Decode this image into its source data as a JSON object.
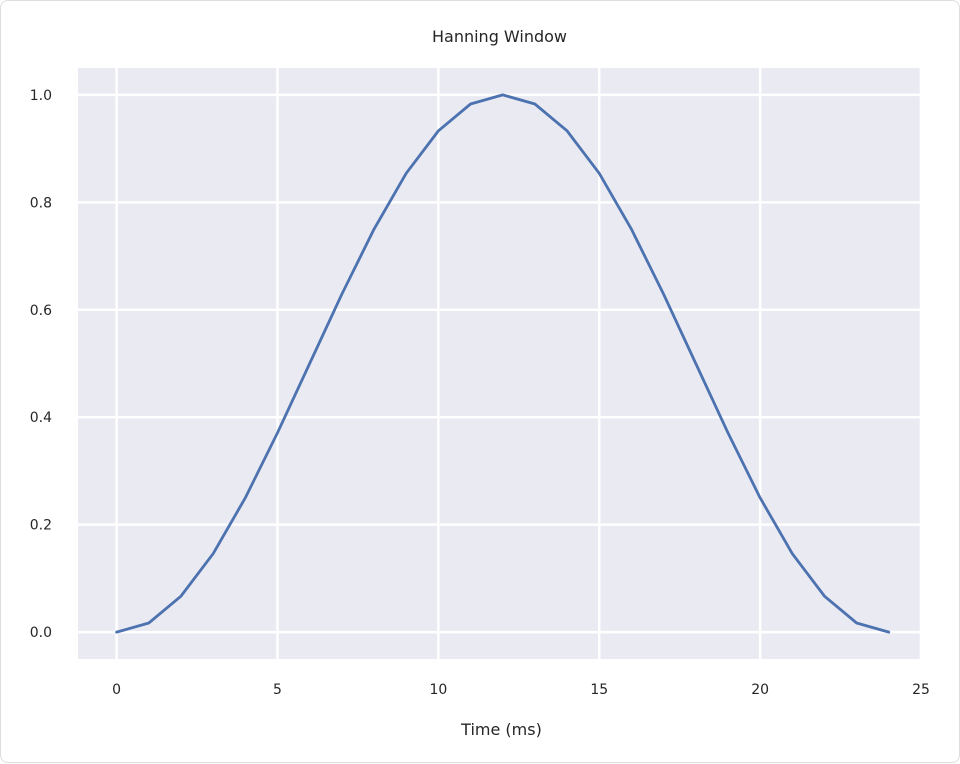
{
  "chart_data": {
    "type": "line",
    "title": "Hanning Window",
    "xlabel": "Time (ms)",
    "ylabel": "",
    "xlim": [
      -1.2,
      25
    ],
    "ylim": [
      -0.05,
      1.05
    ],
    "x_ticks": [
      0,
      5,
      10,
      15,
      20,
      25
    ],
    "x_tick_labels": [
      "0",
      "5",
      "10",
      "15",
      "20",
      "25"
    ],
    "y_ticks": [
      0.0,
      0.2,
      0.4,
      0.6,
      0.8,
      1.0
    ],
    "y_tick_labels": [
      "0.0",
      "0.2",
      "0.4",
      "0.6",
      "0.8",
      "1.0"
    ],
    "grid": true,
    "background_color": "#eaeaf2",
    "grid_color": "#ffffff",
    "series": [
      {
        "color": "#4c72b0",
        "x": [
          0,
          1,
          2,
          3,
          4,
          5,
          6,
          7,
          8,
          9,
          10,
          11,
          12,
          13,
          14,
          15,
          16,
          17,
          18,
          19,
          20,
          21,
          22,
          23,
          24
        ],
        "y": [
          0.0,
          0.017,
          0.067,
          0.146,
          0.25,
          0.371,
          0.5,
          0.629,
          0.75,
          0.854,
          0.933,
          0.983,
          1.0,
          0.983,
          0.933,
          0.854,
          0.75,
          0.629,
          0.5,
          0.371,
          0.25,
          0.146,
          0.067,
          0.017,
          0.0
        ]
      }
    ]
  }
}
